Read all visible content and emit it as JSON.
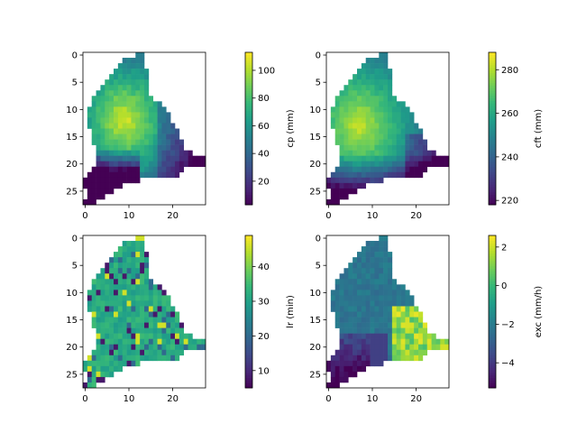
{
  "chart_data": [
    {
      "type": "heatmap",
      "colorbar_label": "cp (mm)",
      "colormap": "viridis",
      "x_ticks": [
        "0",
        "10",
        "20"
      ],
      "y_ticks": [
        "0",
        "5",
        "10",
        "15",
        "20",
        "25"
      ],
      "xlim": [
        -0.5,
        27.5
      ],
      "ylim": [
        27.5,
        -0.5
      ],
      "colorbar_ticks": [
        "20",
        "40",
        "60",
        "80",
        "100"
      ],
      "colorbar_range": [
        3,
        113
      ],
      "pattern": "cp"
    },
    {
      "type": "heatmap",
      "colorbar_label": "cft (mm)",
      "colormap": "viridis",
      "x_ticks": [
        "0",
        "10",
        "20"
      ],
      "y_ticks": [
        "0",
        "5",
        "10",
        "15",
        "20",
        "25"
      ],
      "xlim": [
        -0.5,
        27.5
      ],
      "ylim": [
        27.5,
        -0.5
      ],
      "colorbar_ticks": [
        "220",
        "240",
        "260",
        "280"
      ],
      "colorbar_range": [
        218,
        288
      ],
      "pattern": "cft"
    },
    {
      "type": "heatmap",
      "colorbar_label": "lr (min)",
      "colormap": "viridis",
      "x_ticks": [
        "0",
        "10",
        "20"
      ],
      "y_ticks": [
        "0",
        "5",
        "10",
        "15",
        "20",
        "25"
      ],
      "xlim": [
        -0.5,
        27.5
      ],
      "ylim": [
        27.5,
        -0.5
      ],
      "colorbar_ticks": [
        "10",
        "20",
        "30",
        "40"
      ],
      "colorbar_range": [
        5,
        49
      ],
      "pattern": "lr"
    },
    {
      "type": "heatmap",
      "colorbar_label": "exc (mm/h)",
      "colormap": "viridis",
      "x_ticks": [
        "0",
        "10",
        "20"
      ],
      "y_ticks": [
        "0",
        "5",
        "10",
        "15",
        "20",
        "25"
      ],
      "xlim": [
        -0.5,
        27.5
      ],
      "ylim": [
        27.5,
        -0.5
      ],
      "colorbar_ticks": [
        "−4",
        "−2",
        "0",
        "2"
      ],
      "colorbar_range": [
        -5.3,
        2.6
      ],
      "pattern": "exc"
    }
  ]
}
